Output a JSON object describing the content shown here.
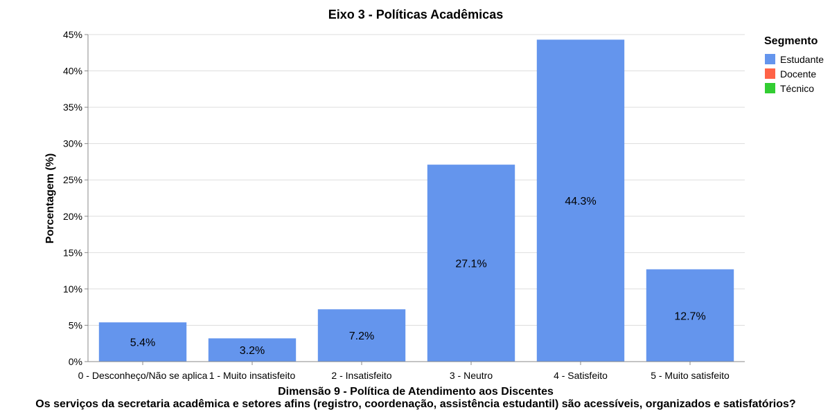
{
  "chart_data": {
    "type": "bar",
    "title": "Eixo 3 - Políticas Acadêmicas",
    "xlabel": "Dimensão 9 - Política de Atendimento aos Discentes",
    "question": "Os serviços da secretaria acadêmica e setores afins (registro, coordenação, assistência estudantil) são acessíveis, organizados e satisfatórios?",
    "ylabel": "Porcentagem (%)",
    "ylim": [
      0,
      45
    ],
    "yticks": [
      0,
      5,
      10,
      15,
      20,
      25,
      30,
      35,
      40,
      45
    ],
    "ytick_suffix": "%",
    "grid": true,
    "categories": [
      "0 - Desconheço/Não se aplica",
      "1 - Muito insatisfeito",
      "2 - Insatisfeito",
      "3 - Neutro",
      "4 - Satisfeito",
      "5 - Muito satisfeito"
    ],
    "series": [
      {
        "name": "Estudante",
        "color": "#6495ED",
        "values": [
          5.4,
          3.2,
          7.2,
          27.1,
          44.3,
          12.7
        ]
      }
    ],
    "data_labels": [
      "5.4%",
      "3.2%",
      "7.2%",
      "27.1%",
      "44.3%",
      "12.7%"
    ],
    "legend": {
      "title": "Segmento",
      "placement": "top-right",
      "entries": [
        {
          "name": "Estudante",
          "color": "#6495ED"
        },
        {
          "name": "Docente",
          "color": "#FF6347"
        },
        {
          "name": "Técnico",
          "color": "#32CD32"
        }
      ]
    }
  }
}
